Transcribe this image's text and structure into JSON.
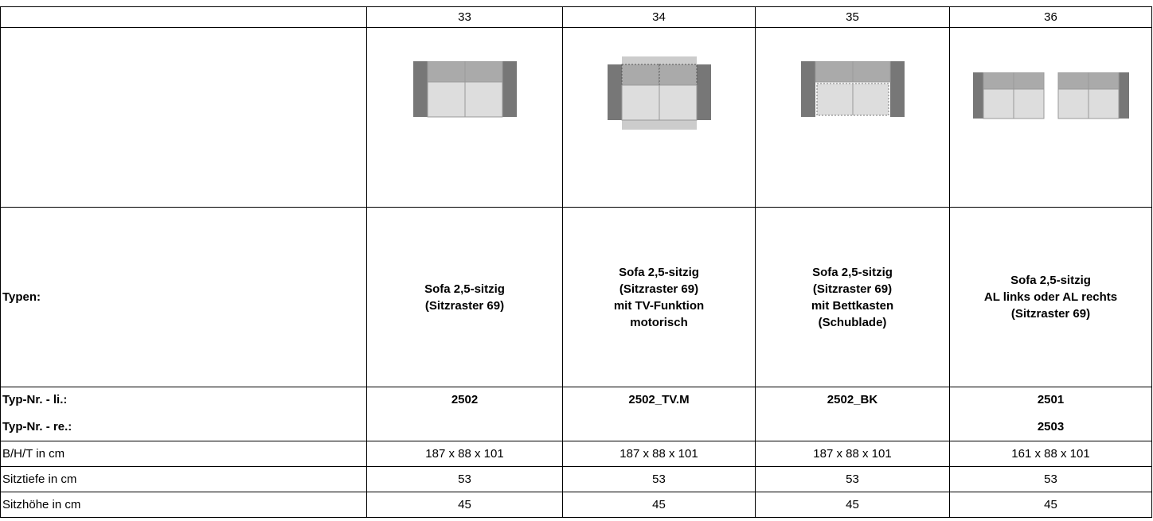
{
  "table": {
    "row_labels": {
      "types": "Typen:",
      "typ_nr_li": "Typ-Nr. - li.:",
      "typ_nr_re": "Typ-Nr. - re.:",
      "bht": "B/H/T in cm",
      "sitztiefe": "Sitztiefe in cm",
      "sitzhoehe": "Sitzhöhe in cm"
    },
    "columns": [
      {
        "number": "33",
        "type_lines": [
          "Sofa 2,5-sitzig",
          "(Sitzraster 69)"
        ],
        "typ_nr_li": "2502",
        "bht": "187 x 88 x 101",
        "sitztiefe": "53",
        "sitzhoehe": "45"
      },
      {
        "number": "34",
        "type_lines": [
          "Sofa 2,5-sitzig",
          "(Sitzraster 69)",
          "mit TV-Funktion",
          "motorisch"
        ],
        "typ_nr_li": "2502_TV.M",
        "bht": "187 x 88 x 101",
        "sitztiefe": "53",
        "sitzhoehe": "45"
      },
      {
        "number": "35",
        "type_lines": [
          "Sofa 2,5-sitzig",
          "(Sitzraster 69)",
          "mit Bettkasten",
          "(Schublade)"
        ],
        "typ_nr_li": "2502_BK",
        "bht": "187 x 88 x 101",
        "sitztiefe": "53",
        "sitzhoehe": "45"
      },
      {
        "number": "36",
        "type_lines": [
          "Sofa 2,5-sitzig",
          "AL links oder AL rechts",
          "(Sitzraster 69)"
        ],
        "typ_nr_li": "2501",
        "typ_nr_re": "2503",
        "bht": "161 x 88 x 101",
        "sitztiefe": "53",
        "sitzhoehe": "45"
      }
    ]
  }
}
